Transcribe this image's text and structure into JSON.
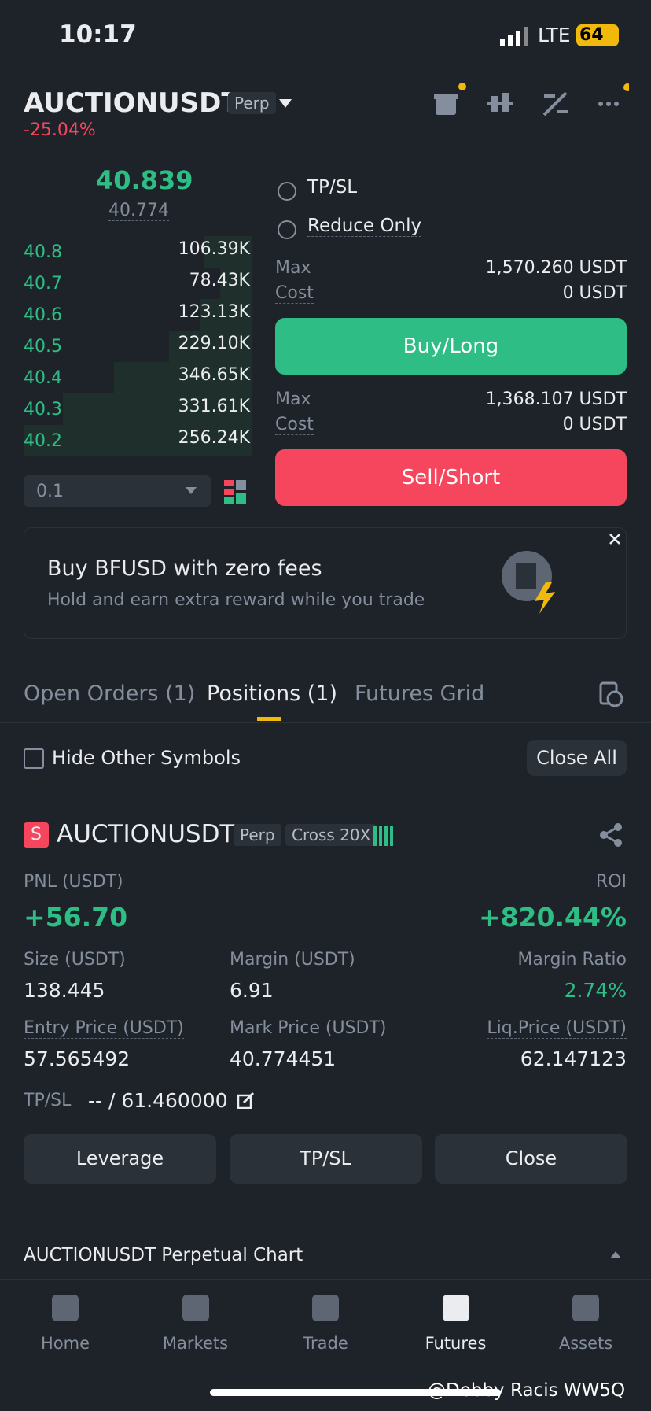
{
  "status": {
    "time": "10:17",
    "network": "LTE",
    "battery": "64"
  },
  "header": {
    "symbol": "AUCTIONUSDT",
    "tag": "Perp",
    "change": "-25.04%"
  },
  "orderbook": {
    "last_price": "40.839",
    "mark_price": "40.774",
    "rows": [
      [
        "40.8",
        "106.39K"
      ],
      [
        "40.7",
        "78.43K"
      ],
      [
        "40.6",
        "123.13K"
      ],
      [
        "40.5",
        "229.10K"
      ],
      [
        "40.4",
        "346.65K"
      ],
      [
        "40.3",
        "331.61K"
      ],
      [
        "40.2",
        "256.24K"
      ]
    ],
    "step": "0.1"
  },
  "order_form": {
    "options": [
      "TP/SL",
      "Reduce Only"
    ],
    "buy": {
      "max_label": "Max",
      "max": "1,570.260 USDT",
      "cost_label": "Cost",
      "cost": "0 USDT",
      "button": "Buy/Long"
    },
    "sell": {
      "max_label": "Max",
      "max": "1,368.107 USDT",
      "cost_label": "Cost",
      "cost": "0 USDT",
      "button": "Sell/Short"
    }
  },
  "banner": {
    "title": "Buy BFUSD with zero fees",
    "subtitle": "Hold and earn extra reward while you trade"
  },
  "tabs": [
    "Open Orders (1)",
    "Positions (1)",
    "Futures Grid"
  ],
  "filter": {
    "hide_label": "Hide Other Symbols",
    "close_all": "Close All"
  },
  "position": {
    "side": "S",
    "symbol": "AUCTIONUSDT",
    "tags": [
      "Perp",
      "Cross 20X"
    ],
    "pnl_label": "PNL (USDT)",
    "pnl": "+56.70",
    "roi_label": "ROI",
    "roi": "+820.44%",
    "fields": [
      [
        {
          "label": "Size (USDT)",
          "value": "138.445"
        },
        {
          "label": "Margin (USDT)",
          "value": "6.91"
        },
        {
          "label": "Margin Ratio",
          "value": "2.74%"
        }
      ],
      [
        {
          "label": "Entry Price (USDT)",
          "value": "57.565492"
        },
        {
          "label": "Mark Price (USDT)",
          "value": "40.774451"
        },
        {
          "label": "Liq.Price (USDT)",
          "value": "62.147123"
        }
      ]
    ],
    "tpsl_label": "TP/SL",
    "tpsl": "-- / 61.460000",
    "buttons": [
      "Leverage",
      "TP/SL",
      "Close"
    ]
  },
  "chart_bar": "AUCTIONUSDT Perpetual  Chart",
  "nav": [
    "Home",
    "Markets",
    "Trade",
    "Futures",
    "Assets"
  ],
  "watermark": "@Debby Racis WW5Q"
}
